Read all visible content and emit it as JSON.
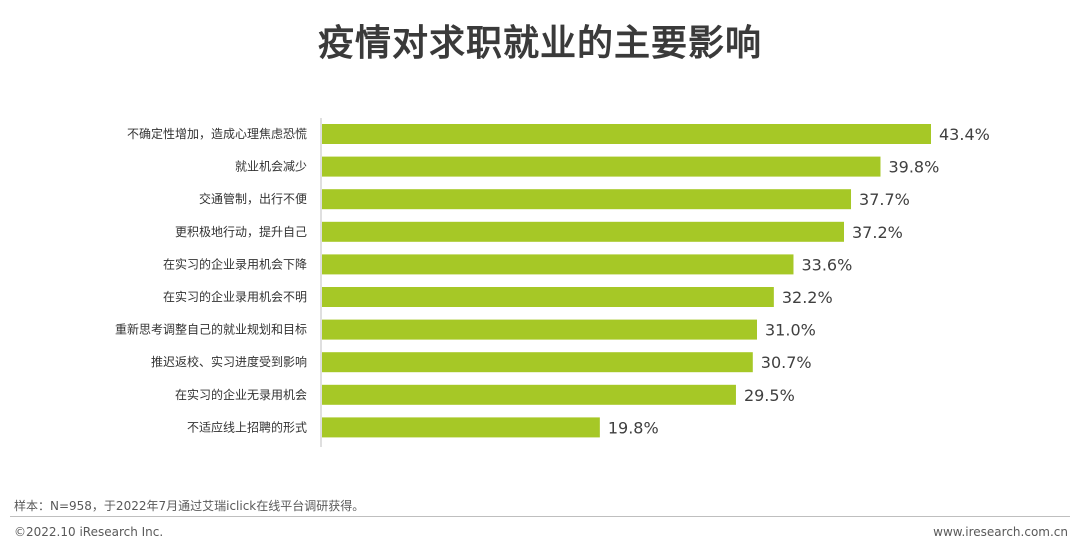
{
  "title": "疫情对求职就业的主要影响",
  "chart_data": {
    "type": "bar",
    "orientation": "horizontal",
    "categories": [
      "不确定性增加，造成心理焦虑恐慌",
      "就业机会减少",
      "交通管制，出行不便",
      "更积极地行动，提升自己",
      "在实习的企业录用机会下降",
      "在实习的企业录用机会不明",
      "重新思考调整自己的就业规划和目标",
      "推迟返校、实习进度受到影响",
      "在实习的企业无录用机会",
      "不适应线上招聘的形式"
    ],
    "values": [
      43.4,
      39.8,
      37.7,
      37.2,
      33.6,
      32.2,
      31.0,
      30.7,
      29.5,
      19.8
    ],
    "labels": [
      "43.4%",
      "39.8%",
      "37.7%",
      "37.2%",
      "33.6%",
      "32.2%",
      "31.0%",
      "30.7%",
      "29.5%",
      "19.8%"
    ],
    "xlim": [
      0,
      43.4
    ],
    "bar_color": "#a6c826",
    "grid": false
  },
  "footer": {
    "note": "样本：N=958，于2022年7月通过艾瑞iclick在线平台调研获得。",
    "copyright": "©2022.10 iResearch Inc.",
    "website": "www.iresearch.com.cn"
  }
}
